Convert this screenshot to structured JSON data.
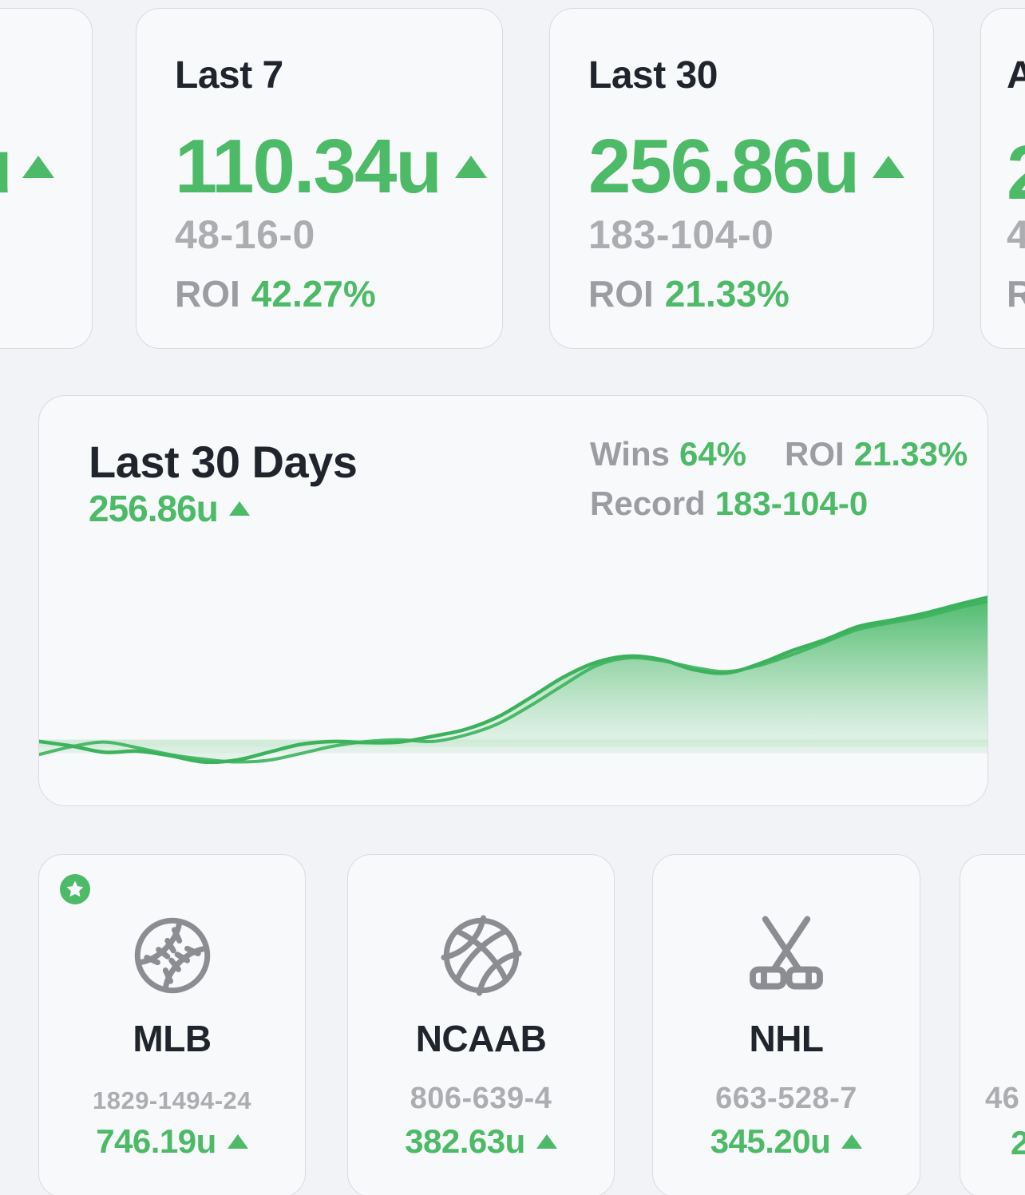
{
  "colors": {
    "accent_green": "#4cba66",
    "chart_line_green": "#3cb25c",
    "record_gray": "#abadb0",
    "label_gray": "#9b9da2",
    "dark_text": "#20242c",
    "card_bg": "#f8f9fb",
    "page_bg": "#f2f3f6",
    "card_border": "#d9dbdf"
  },
  "top_cards": [
    {
      "partial": true,
      "value_fragment": "u",
      "trend": "up"
    },
    {
      "title": "Last 7",
      "value": "110.34u",
      "trend": "up",
      "record": "48-16-0",
      "roi_label": "ROI",
      "roi_value": "42.27%"
    },
    {
      "title": "Last 30",
      "value": "256.86u",
      "trend": "up",
      "record": "183-104-0",
      "roi_label": "ROI",
      "roi_value": "21.33%"
    },
    {
      "partial": true,
      "title_fragment": "A",
      "value_fragment": "2",
      "record_fragment": "4",
      "roi_fragment": "R"
    }
  ],
  "chart_card": {
    "title": "Last 30 Days",
    "value": "256.86u",
    "trend": "up",
    "stats": {
      "wins_label": "Wins",
      "wins_value": "64%",
      "roi_label": "ROI",
      "roi_value": "21.33%",
      "record_label": "Record",
      "record_value": "183-104-0"
    }
  },
  "chart_data": {
    "type": "area",
    "title": "Last 30 Days cumulative units",
    "x_unit": "day",
    "x_range": [
      1,
      30
    ],
    "ylim": [
      -40,
      270
    ],
    "baseline": 0,
    "grid": false,
    "axes_hidden": true,
    "legend": "none",
    "end_label": "256.86u",
    "line_color": "#3cb25c",
    "fill": "vertical-gradient green to near-white",
    "series": [
      {
        "name": "units_primary",
        "values": [
          3,
          -5,
          -16,
          -14,
          -22,
          -33,
          -30,
          -16,
          -2,
          3,
          1,
          2,
          12,
          24,
          46,
          80,
          116,
          142,
          153,
          147,
          129,
          123.5,
          140,
          163,
          182,
          205,
          216,
          228,
          243,
          256.86
        ]
      },
      {
        "name": "units_secondary",
        "values": [
          -20,
          -6,
          2,
          -8,
          -20,
          -28,
          -33,
          -30,
          -18,
          -5,
          3,
          6,
          3,
          14,
          34,
          66,
          102,
          136,
          150,
          145,
          133,
          126,
          137,
          156,
          178,
          200,
          212,
          222,
          237,
          250
        ]
      }
    ]
  },
  "sport_cards": [
    {
      "name": "MLB",
      "icon": "baseball-icon",
      "record": "1829-1494-24",
      "value": "746.19u",
      "trend": "up",
      "starred": true
    },
    {
      "name": "NCAAB",
      "icon": "basketball-icon",
      "record": "806-639-4",
      "value": "382.63u",
      "trend": "up",
      "starred": false
    },
    {
      "name": "NHL",
      "icon": "hockey-sticks-icon",
      "record": "663-528-7",
      "value": "345.20u",
      "trend": "up",
      "starred": false
    },
    {
      "partial": true,
      "record_fragment": "46",
      "value_fragment": "2"
    }
  ]
}
